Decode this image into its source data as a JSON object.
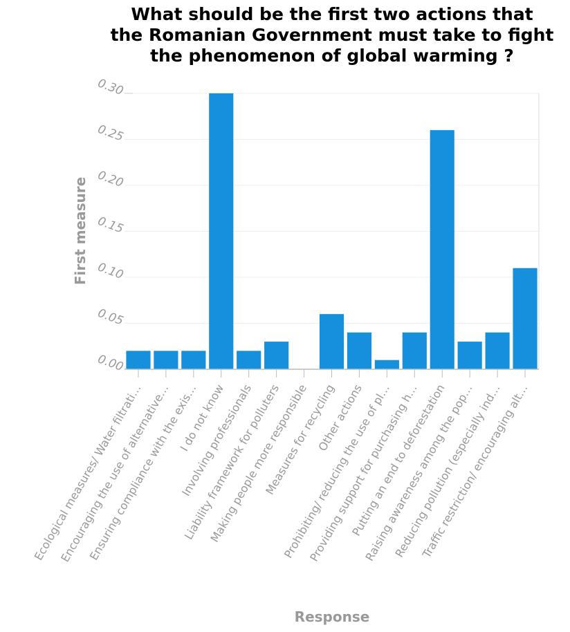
{
  "chart_data": {
    "type": "bar",
    "title_lines": [
      "What should be the first two actions that",
      "the Romanian Government must take to fight",
      "the phenomenon of global warming ?"
    ],
    "xlabel": "Response",
    "ylabel": "First measure",
    "ylim": [
      0,
      0.3
    ],
    "yticks": [
      "0.00",
      "0.05",
      "0.10",
      "0.15",
      "0.20",
      "0.25",
      "0.30"
    ],
    "grid": true,
    "bar_color": "#168fdc",
    "categories": [
      "Ecological measures/ Water filtrati…",
      "Encouraging the use of alternative…",
      "Ensuring compliance with the exis…",
      "I do not know",
      "Involving professionals",
      "Liability framework for polluters",
      "Making people more responsible",
      "Measures for recycling",
      "Other actions",
      "Prohibiting/ reducing the use of pl…",
      "Providing support for purchasing h…",
      "Putting an end to deforestation",
      "Raising awareness among the pop…",
      "Reducing pollution (especially ind…",
      "Traffic restriction/ encouraging alt…"
    ],
    "values": [
      0.02,
      0.02,
      0.02,
      0.3,
      0.02,
      0.03,
      0.0,
      0.06,
      0.04,
      0.01,
      0.04,
      0.26,
      0.03,
      0.04,
      0.11
    ]
  }
}
